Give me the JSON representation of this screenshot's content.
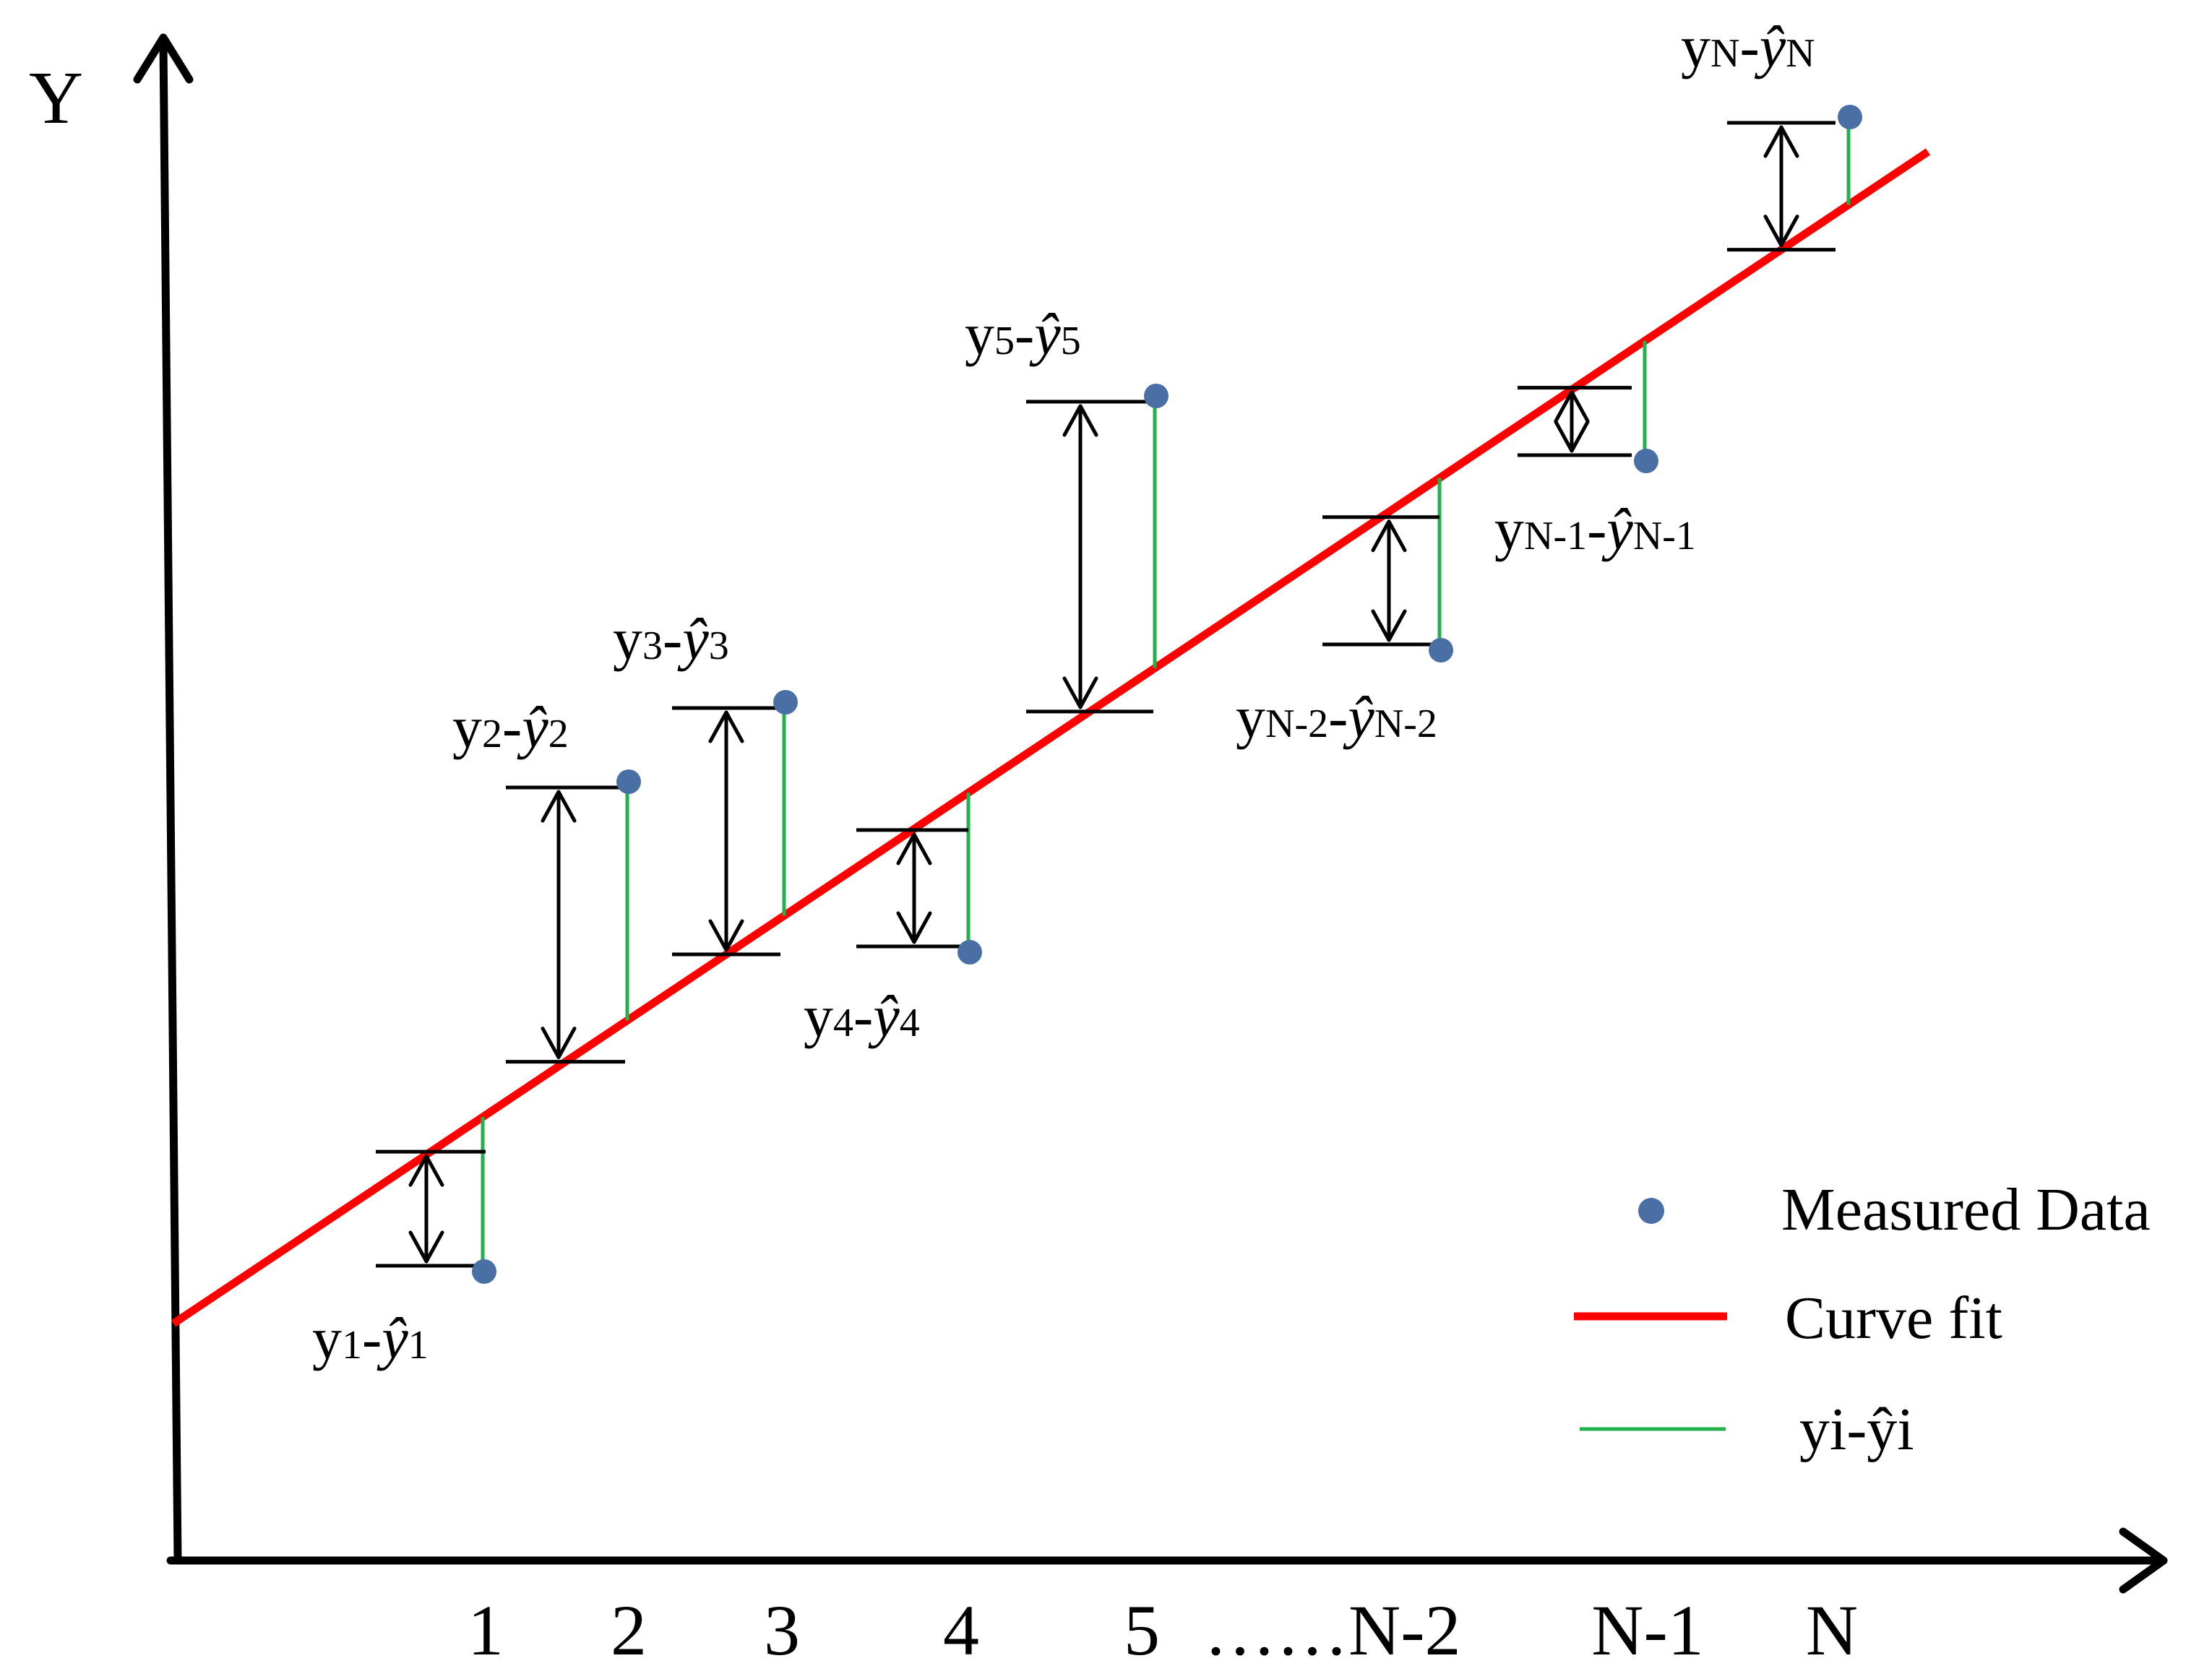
{
  "axis": {
    "y_label": "Y"
  },
  "x_ticks": [
    "1",
    "2",
    "3",
    "4",
    "5",
    "……N-2",
    "N-1",
    "N"
  ],
  "colors": {
    "measured": "#4a6fa5",
    "fit": "#ff0000",
    "residual": "#22b14c",
    "axis": "#000000"
  },
  "residual_labels": [
    {
      "main": "y",
      "sub": "1",
      "hat_sub": "1"
    },
    {
      "main": "y",
      "sub": "2",
      "hat_sub": "2"
    },
    {
      "main": "y",
      "sub": "3",
      "hat_sub": "3"
    },
    {
      "main": "y",
      "sub": "4",
      "hat_sub": "4"
    },
    {
      "main": "y",
      "sub": "5",
      "hat_sub": "5"
    },
    {
      "main": "y",
      "sub": "N-2",
      "hat_sub": "N-2"
    },
    {
      "main": "y",
      "sub": "N-1",
      "hat_sub": "N-1"
    },
    {
      "main": "y",
      "sub": "N",
      "hat_sub": "N"
    }
  ],
  "legend": {
    "measured": "Measured Data",
    "fit": "Curve fit",
    "residual": "yi-ŷi"
  },
  "chart_data": {
    "type": "scatter",
    "categories": [
      "1",
      "2",
      "3",
      "4",
      "5",
      "……N-2",
      "N-1",
      "N"
    ],
    "measured_above_fit": [
      false,
      true,
      true,
      false,
      true,
      false,
      false,
      true
    ],
    "series": [
      {
        "name": "Measured Data"
      },
      {
        "name": "Curve fit"
      },
      {
        "name": "yi-ŷi"
      }
    ]
  }
}
